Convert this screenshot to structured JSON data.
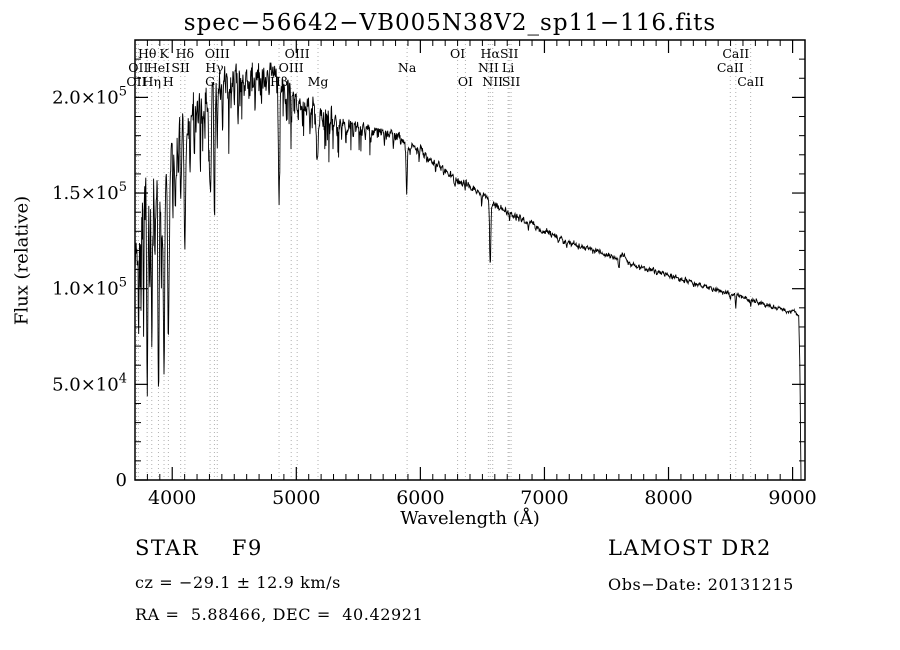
{
  "annotations": {
    "class_label": "STAR    F9",
    "survey": "LAMOST DR2",
    "cz": "cz = −29.1 ± 12.9 km/s",
    "obs_date": "Obs−Date: 20131215",
    "ra_dec": "RA =  5.88466, DEC =  40.42921"
  },
  "chart_data": {
    "type": "line",
    "title": "spec−56642−VB005N38V2_sp11−116.fits",
    "xlabel": "Wavelength (Å)",
    "ylabel": "Flux (relative)",
    "xlim": [
      3700,
      9100
    ],
    "ylim": [
      0,
      230000
    ],
    "x_major_ticks": [
      4000,
      5000,
      6000,
      7000,
      8000,
      9000
    ],
    "x_minor_step": 100,
    "y_minor_step": 10000,
    "y_major_ticks": [
      {
        "value": 0,
        "base": "0",
        "exp": ""
      },
      {
        "value": 50000,
        "base": "5.0×10",
        "exp": "4"
      },
      {
        "value": 100000,
        "base": "1.0×10",
        "exp": "5"
      },
      {
        "value": 150000,
        "base": "1.5×10",
        "exp": "5"
      },
      {
        "value": 200000,
        "base": "2.0×10",
        "exp": "5"
      }
    ],
    "frame_color": "#000000",
    "dotted_line_color": "#b0b0b0",
    "label_rows": {
      "1": 58,
      "2": 72,
      "3": 86
    },
    "spectral_lines": [
      {
        "label": "Hθ",
        "wl": 3798,
        "row": 1
      },
      {
        "label": "K",
        "wl": 3934,
        "row": 1
      },
      {
        "label": "Hδ",
        "wl": 4102,
        "row": 1
      },
      {
        "label": "OIII",
        "wl": 4363,
        "row": 1
      },
      {
        "label": "OIII",
        "wl": 5007,
        "row": 1
      },
      {
        "label": "OI",
        "wl": 6300,
        "row": 1
      },
      {
        "label": "Hα",
        "wl": 6563,
        "row": 1
      },
      {
        "label": "SII",
        "wl": 6716,
        "row": 1
      },
      {
        "label": "CaII",
        "wl": 8542,
        "row": 1
      },
      {
        "label": "OII",
        "wl": 3727,
        "row": 2
      },
      {
        "label": "HeI",
        "wl": 3889,
        "row": 2
      },
      {
        "label": "SII",
        "wl": 4068,
        "row": 2
      },
      {
        "label": "Hγ",
        "wl": 4340,
        "row": 2
      },
      {
        "label": "OIII",
        "wl": 4959,
        "row": 2
      },
      {
        "label": "Na",
        "wl": 5893,
        "row": 2
      },
      {
        "label": "NII",
        "wl": 6548,
        "row": 2
      },
      {
        "label": "Li",
        "wl": 6707,
        "row": 2
      },
      {
        "label": "CaII",
        "wl": 8498,
        "row": 2
      },
      {
        "label": "OII",
        "wl": 3712,
        "row": 3
      },
      {
        "label": "Hη",
        "wl": 3835,
        "row": 3
      },
      {
        "label": "H",
        "wl": 3969,
        "row": 3
      },
      {
        "label": "G",
        "wl": 4305,
        "row": 3
      },
      {
        "label": "Hβ",
        "wl": 4861,
        "row": 3
      },
      {
        "label": "Mg",
        "wl": 5175,
        "row": 3
      },
      {
        "label": "OI",
        "wl": 6363,
        "row": 3
      },
      {
        "label": "NII",
        "wl": 6583,
        "row": 3
      },
      {
        "label": "SII",
        "wl": 6731,
        "row": 3
      },
      {
        "label": "CaII",
        "wl": 8662,
        "row": 3
      }
    ],
    "series": [
      {
        "name": "spectrum",
        "color": "#000000",
        "sample_step": 3,
        "noise_seed": 7,
        "spike_prob": 0.1,
        "spike_amp": 20000,
        "spike_max_wl": 5600,
        "envelope": [
          [
            3700,
            120000
          ],
          [
            3725,
            135000
          ],
          [
            3745,
            125000
          ],
          [
            3765,
            130000
          ],
          [
            3790,
            135000
          ],
          [
            3815,
            140000
          ],
          [
            3840,
            138000
          ],
          [
            3870,
            142000
          ],
          [
            3900,
            148000
          ],
          [
            3930,
            155000
          ],
          [
            3960,
            158000
          ],
          [
            3990,
            165000
          ],
          [
            4020,
            172000
          ],
          [
            4060,
            178000
          ],
          [
            4100,
            183000
          ],
          [
            4150,
            188000
          ],
          [
            4200,
            192000
          ],
          [
            4250,
            196000
          ],
          [
            4300,
            198000
          ],
          [
            4350,
            202000
          ],
          [
            4400,
            205000
          ],
          [
            4450,
            208000
          ],
          [
            4500,
            210000
          ],
          [
            4550,
            211000
          ],
          [
            4600,
            212000
          ],
          [
            4650,
            211000
          ],
          [
            4700,
            213000
          ],
          [
            4750,
            210000
          ],
          [
            4800,
            214000
          ],
          [
            4840,
            210000
          ],
          [
            4880,
            207000
          ],
          [
            4920,
            205000
          ],
          [
            4960,
            202000
          ],
          [
            5000,
            200000
          ],
          [
            5050,
            197000
          ],
          [
            5100,
            195000
          ],
          [
            5150,
            193000
          ],
          [
            5200,
            190000
          ],
          [
            5250,
            190000
          ],
          [
            5300,
            188000
          ],
          [
            5350,
            187000
          ],
          [
            5400,
            186000
          ],
          [
            5450,
            186000
          ],
          [
            5500,
            185000
          ],
          [
            5550,
            184000
          ],
          [
            5600,
            183000
          ],
          [
            5650,
            182000
          ],
          [
            5700,
            181000
          ],
          [
            5750,
            181000
          ],
          [
            5800,
            180000
          ],
          [
            5850,
            178000
          ],
          [
            5900,
            175000
          ],
          [
            5950,
            174000
          ],
          [
            6000,
            172000
          ],
          [
            6050,
            169000
          ],
          [
            6100,
            167000
          ],
          [
            6150,
            164000
          ],
          [
            6200,
            162000
          ],
          [
            6250,
            159000
          ],
          [
            6300,
            157000
          ],
          [
            6350,
            155000
          ],
          [
            6400,
            153000
          ],
          [
            6450,
            151000
          ],
          [
            6500,
            149000
          ],
          [
            6550,
            147000
          ],
          [
            6600,
            144000
          ],
          [
            6650,
            142000
          ],
          [
            6700,
            140000
          ],
          [
            6750,
            139000
          ],
          [
            6800,
            137000
          ],
          [
            6850,
            135000
          ],
          [
            6900,
            134000
          ],
          [
            6950,
            132000
          ],
          [
            7000,
            130000
          ],
          [
            7100,
            127000
          ],
          [
            7200,
            124000
          ],
          [
            7300,
            122000
          ],
          [
            7400,
            120000
          ],
          [
            7500,
            118000
          ],
          [
            7600,
            116000
          ],
          [
            7640,
            118000
          ],
          [
            7680,
            113000
          ],
          [
            7750,
            112000
          ],
          [
            7800,
            111000
          ],
          [
            7900,
            109000
          ],
          [
            8000,
            107000
          ],
          [
            8100,
            105000
          ],
          [
            8200,
            103000
          ],
          [
            8300,
            101000
          ],
          [
            8400,
            99000
          ],
          [
            8500,
            97000
          ],
          [
            8600,
            95500
          ],
          [
            8700,
            93500
          ],
          [
            8800,
            91500
          ],
          [
            8900,
            89500
          ],
          [
            9000,
            88000
          ],
          [
            9030,
            87000
          ],
          [
            9050,
            86000
          ],
          [
            9058,
            60000
          ],
          [
            9064,
            25000
          ],
          [
            9068,
            0
          ]
        ],
        "absorption_lines": [
          [
            3727,
            45000,
            4
          ],
          [
            3750,
            55000,
            3
          ],
          [
            3770,
            65000,
            3
          ],
          [
            3798,
            75000,
            4
          ],
          [
            3820,
            45000,
            3
          ],
          [
            3835,
            80000,
            4
          ],
          [
            3860,
            35000,
            3
          ],
          [
            3889,
            90000,
            5
          ],
          [
            3912,
            40000,
            3
          ],
          [
            3934,
            95000,
            6
          ],
          [
            3969,
            85000,
            6
          ],
          [
            4005,
            30000,
            3
          ],
          [
            4026,
            35000,
            4
          ],
          [
            4068,
            30000,
            4
          ],
          [
            4102,
            70000,
            6
          ],
          [
            4144,
            25000,
            3
          ],
          [
            4180,
            20000,
            3
          ],
          [
            4227,
            30000,
            3
          ],
          [
            4260,
            20000,
            3
          ],
          [
            4305,
            50000,
            7
          ],
          [
            4340,
            65000,
            5
          ],
          [
            4363,
            25000,
            3
          ],
          [
            4405,
            20000,
            3
          ],
          [
            4455,
            18000,
            3
          ],
          [
            4500,
            15000,
            3
          ],
          [
            4531,
            15000,
            3
          ],
          [
            4580,
            12000,
            3
          ],
          [
            4620,
            12000,
            3
          ],
          [
            4668,
            15000,
            3
          ],
          [
            4720,
            12000,
            3
          ],
          [
            4780,
            12000,
            3
          ],
          [
            4861,
            60000,
            5
          ],
          [
            4920,
            14000,
            3
          ],
          [
            4957,
            10000,
            3
          ],
          [
            5015,
            12000,
            3
          ],
          [
            5050,
            10000,
            3
          ],
          [
            5110,
            10000,
            3
          ],
          [
            5170,
            28000,
            7
          ],
          [
            5230,
            8000,
            3
          ],
          [
            5270,
            12000,
            4
          ],
          [
            5328,
            10000,
            3
          ],
          [
            5400,
            7000,
            3
          ],
          [
            5460,
            7000,
            3
          ],
          [
            5530,
            6000,
            3
          ],
          [
            5600,
            6000,
            3
          ],
          [
            5710,
            6000,
            3
          ],
          [
            5782,
            6000,
            3
          ],
          [
            5890,
            24000,
            5
          ],
          [
            5990,
            5000,
            3
          ],
          [
            6122,
            6000,
            3
          ],
          [
            6280,
            4000,
            3
          ],
          [
            6360,
            4000,
            3
          ],
          [
            6495,
            5000,
            3
          ],
          [
            6563,
            34000,
            5
          ],
          [
            6717,
            3000,
            3
          ],
          [
            6870,
            4000,
            4
          ],
          [
            7180,
            3000,
            3
          ],
          [
            7600,
            5000,
            5
          ],
          [
            8200,
            2500,
            3
          ],
          [
            8498,
            3000,
            2.5
          ],
          [
            8542,
            5000,
            3
          ],
          [
            8662,
            4000,
            2.5
          ]
        ],
        "noise_profile": [
          [
            3700,
            26000
          ],
          [
            3900,
            20000
          ],
          [
            4000,
            14000
          ],
          [
            4200,
            11000
          ],
          [
            4500,
            9000
          ],
          [
            4800,
            8000
          ],
          [
            5000,
            6500
          ],
          [
            5300,
            5000
          ],
          [
            5600,
            4000
          ],
          [
            5900,
            3200
          ],
          [
            6200,
            2600
          ],
          [
            6500,
            2200
          ],
          [
            6800,
            2000
          ],
          [
            7200,
            1800
          ],
          [
            7800,
            1600
          ],
          [
            8400,
            1500
          ],
          [
            9068,
            1300
          ]
        ]
      }
    ]
  }
}
